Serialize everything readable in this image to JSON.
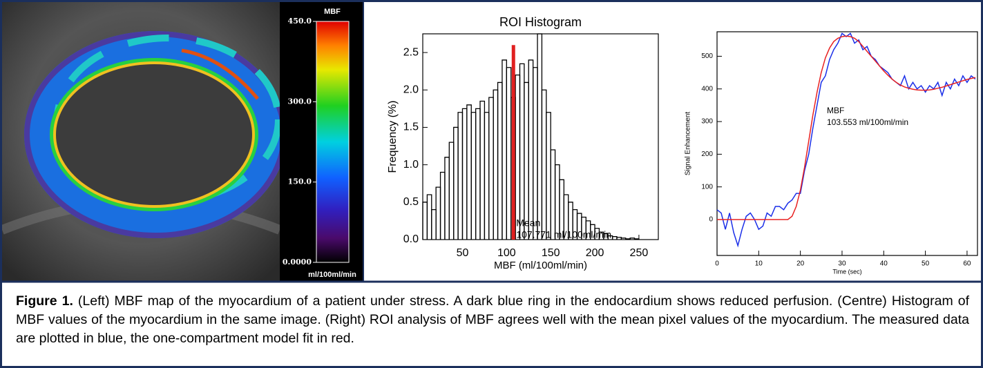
{
  "chart_data": [
    {
      "type": "colorbar",
      "title": "MBF",
      "unit": "ml/100ml/min",
      "ylim": [
        0,
        450
      ],
      "yticks": [
        {
          "value": 0,
          "label": "0.0000"
        },
        {
          "value": 150,
          "label": "150.0"
        },
        {
          "value": 300,
          "label": "300.0"
        },
        {
          "value": 450,
          "label": "450.0"
        }
      ]
    },
    {
      "type": "histogram",
      "title": "ROI Histogram",
      "xlabel": "MBF (ml/100ml/min)",
      "ylabel": "Frequency (%)",
      "color": "#000000",
      "bins": [
        5,
        10,
        15,
        20,
        25,
        30,
        35,
        40,
        45,
        50,
        55,
        60,
        65,
        70,
        75,
        80,
        85,
        90,
        95,
        100,
        105,
        110,
        115,
        120,
        125,
        130,
        135,
        140,
        145,
        150,
        155,
        160,
        165,
        170,
        175,
        180,
        185,
        190,
        195,
        200,
        205,
        210,
        215,
        220,
        225,
        230,
        235,
        240,
        245,
        250
      ],
      "counts": [
        0.5,
        0.6,
        0.4,
        0.7,
        0.9,
        1.1,
        1.3,
        1.5,
        1.7,
        1.75,
        1.8,
        1.7,
        1.75,
        1.85,
        1.7,
        1.9,
        2.0,
        2.1,
        2.4,
        2.3,
        1.9,
        2.2,
        2.35,
        2.1,
        2.4,
        2.3,
        2.75,
        2.0,
        1.7,
        1.2,
        1.0,
        0.8,
        0.6,
        0.5,
        0.4,
        0.35,
        0.3,
        0.25,
        0.2,
        0.15,
        0.1,
        0.08,
        0.05,
        0.04,
        0.03,
        0.02,
        0.01,
        0.02,
        0.01
      ],
      "mean": {
        "value": 107.771,
        "label": "Mean",
        "value_label": "107.771 ml/100ml/min",
        "color": "#e02020"
      },
      "xlim": [
        5,
        272
      ],
      "xticks": [
        50,
        100,
        150,
        200,
        250
      ],
      "ylim": [
        0,
        2.75
      ],
      "yticks": [
        {
          "value": 0,
          "label": "0.0"
        },
        {
          "value": 0.5,
          "label": "0.5"
        },
        {
          "value": 1,
          "label": "1.0"
        },
        {
          "value": 1.5,
          "label": "1.5"
        },
        {
          "value": 2,
          "label": "2.0"
        },
        {
          "value": 2.5,
          "label": "2.5"
        }
      ]
    },
    {
      "type": "line",
      "xlabel": "Time (sec)",
      "ylabel": "Signal Enhancement",
      "annotation": {
        "label": "MBF",
        "value_label": "103.553 ml/100ml/min"
      },
      "x": [
        0,
        1,
        2,
        3,
        4,
        5,
        6,
        7,
        8,
        9,
        10,
        11,
        12,
        13,
        14,
        15,
        16,
        17,
        18,
        19,
        20,
        21,
        22,
        23,
        24,
        25,
        26,
        27,
        28,
        29,
        30,
        31,
        32,
        33,
        34,
        35,
        36,
        37,
        38,
        39,
        40,
        41,
        42,
        43,
        44,
        45,
        46,
        47,
        48,
        49,
        50,
        51,
        52,
        53,
        54,
        55,
        56,
        57,
        58,
        59,
        60,
        61,
        62
      ],
      "series": [
        {
          "color": "#1a2ee8",
          "values": [
            30,
            20,
            -30,
            20,
            -40,
            -80,
            -30,
            10,
            20,
            0,
            -30,
            -20,
            20,
            10,
            40,
            40,
            30,
            50,
            60,
            80,
            80,
            150,
            200,
            280,
            350,
            420,
            440,
            490,
            520,
            540,
            570,
            560,
            570,
            540,
            550,
            520,
            530,
            500,
            490,
            470,
            460,
            450,
            430,
            420,
            410,
            440,
            400,
            420,
            400,
            410,
            390,
            410,
            400,
            420,
            380,
            420,
            400,
            430,
            410,
            440,
            420,
            440,
            430
          ]
        },
        {
          "color": "#e82020",
          "values": [
            0,
            0,
            0,
            0,
            0,
            0,
            0,
            0,
            0,
            0,
            0,
            0,
            0,
            0,
            0,
            0,
            0,
            0,
            10,
            40,
            90,
            160,
            240,
            320,
            390,
            450,
            495,
            525,
            545,
            555,
            560,
            562,
            560,
            555,
            545,
            530,
            515,
            500,
            485,
            470,
            455,
            442,
            430,
            420,
            412,
            406,
            402,
            399,
            397,
            396,
            396,
            397,
            399,
            402,
            405,
            409,
            413,
            417,
            421,
            425,
            429,
            432,
            435
          ]
        }
      ],
      "xlim": [
        0,
        62.5
      ],
      "xticks": [
        0,
        10,
        20,
        30,
        40,
        50,
        60
      ],
      "ylim": [
        -110,
        575
      ],
      "yticks": [
        0,
        100,
        200,
        300,
        400,
        500
      ]
    }
  ],
  "caption": {
    "label": "Figure 1.",
    "text": " (Left) MBF map of the myocardium of a patient under stress. A dark blue ring in the endocardium shows reduced perfusion. (Centre) Histogram of MBF values of the myocardium in the same image. (Right) ROI analysis of MBF agrees well with the mean pixel values of the myocardium. The measured data are plotted in blue, the one-compartment model fit in red."
  }
}
